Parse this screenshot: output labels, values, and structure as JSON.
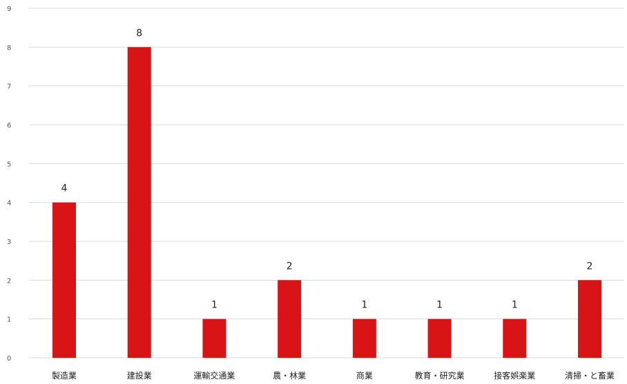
{
  "chart_data": {
    "type": "bar",
    "title": "",
    "xlabel": "",
    "ylabel": "",
    "categories": [
      "製造業",
      "建設業",
      "運輸交通業",
      "農・林業",
      "商業",
      "教育・研究業",
      "接客娯楽業",
      "清掃・と畜業"
    ],
    "values": [
      4,
      8,
      1,
      2,
      1,
      1,
      1,
      2
    ],
    "ylim": [
      0,
      9
    ],
    "yticks": [
      0,
      1,
      2,
      3,
      4,
      5,
      6,
      7,
      8,
      9
    ],
    "grid": true,
    "legend": "none",
    "bar_color": "#d91416"
  }
}
